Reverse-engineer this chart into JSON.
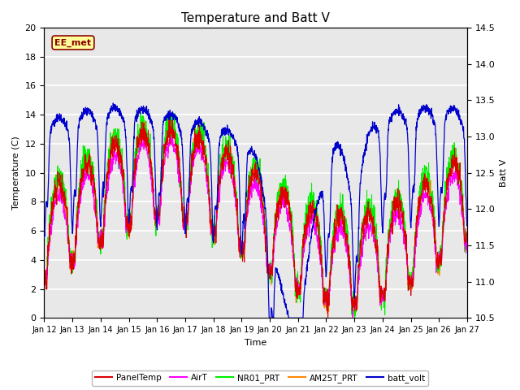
{
  "title": "Temperature and Batt V",
  "xlabel": "Time",
  "ylabel_left": "Temperature (C)",
  "ylabel_right": "Batt V",
  "annotation": "EE_met",
  "ylim_left": [
    0,
    20
  ],
  "ylim_right": [
    10.5,
    14.5
  ],
  "xtick_labels": [
    "Jan 12",
    "Jan 13",
    "Jan 14",
    "Jan 15",
    "Jan 16",
    "Jan 17",
    "Jan 18",
    "Jan 19",
    "Jan 20",
    "Jan 21",
    "Jan 22",
    "Jan 23",
    "Jan 24",
    "Jan 25",
    "Jan 26",
    "Jan 27"
  ],
  "fig_bg": "#ffffff",
  "plot_bg": "#e8e8e8",
  "grid_color": "#ffffff",
  "series_colors": {
    "PanelTemp": "#dd0000",
    "AirT": "#ff00ff",
    "NR01_PRT": "#00ee00",
    "AM25T_PRT": "#ff8800",
    "batt_volt": "#0000cc"
  },
  "n_points": 2000,
  "seed": 7
}
